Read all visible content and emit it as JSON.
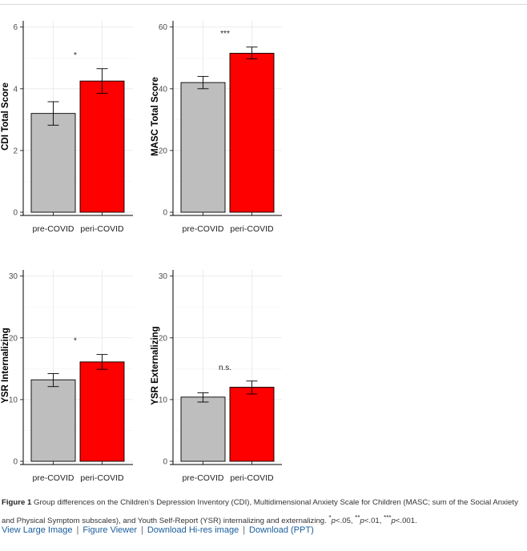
{
  "chart_data": [
    {
      "type": "bar",
      "categories": [
        "pre-COVID",
        "peri-COVID"
      ],
      "values": [
        3.2,
        4.25
      ],
      "error": [
        [
          2.82,
          3.58
        ],
        [
          3.85,
          4.65
        ]
      ],
      "colors": [
        "#bebebe",
        "#ff0000"
      ],
      "ylabel": "CDI Total Score",
      "ylim": [
        0,
        6.2
      ],
      "yticks": [
        0,
        2,
        4,
        6
      ],
      "annotation": "*",
      "grid": true
    },
    {
      "type": "bar",
      "categories": [
        "pre-COVID",
        "peri-COVID"
      ],
      "values": [
        42,
        51.5
      ],
      "error": [
        [
          40,
          44
        ],
        [
          49.7,
          53.5
        ]
      ],
      "colors": [
        "#bebebe",
        "#ff0000"
      ],
      "ylabel": "MASC Total Score",
      "ylim": [
        0,
        62
      ],
      "yticks": [
        0,
        20,
        40,
        60
      ],
      "annotation": "***",
      "grid": true
    },
    {
      "type": "bar",
      "categories": [
        "pre-COVID",
        "peri-COVID"
      ],
      "values": [
        13.2,
        16.1
      ],
      "error": [
        [
          12.1,
          14.2
        ],
        [
          14.9,
          17.3
        ]
      ],
      "colors": [
        "#bebebe",
        "#ff0000"
      ],
      "ylabel": "YSR Internalizing",
      "ylim": [
        0,
        31
      ],
      "yticks": [
        0,
        10,
        20,
        30
      ],
      "annotation": "*",
      "grid": true
    },
    {
      "type": "bar",
      "categories": [
        "pre-COVID",
        "peri-COVID"
      ],
      "values": [
        10.4,
        12
      ],
      "error": [
        [
          9.6,
          11.1
        ],
        [
          10.9,
          13
        ]
      ],
      "colors": [
        "#bebebe",
        "#ff0000"
      ],
      "ylabel": "YSR Externalizing",
      "ylim": [
        0,
        31
      ],
      "yticks": [
        0,
        10,
        20,
        30
      ],
      "annotation": "n.s.",
      "grid": true
    }
  ],
  "caption": {
    "label": "Figure 1",
    "text": "Group differences on the Children’s Depression Inventory (CDI), Multidimensional Anxiety Scale for Children (MASC; sum of the Social Anxiety and Physical Symptom subscales), and Youth Self-Report (YSR) internalizing and externalizing.",
    "sig_1_mark": "*",
    "sig_1_p": "p",
    "sig_1_val": "<.05, ",
    "sig_2_mark": "**",
    "sig_2_p": "p",
    "sig_2_val": "<.01, ",
    "sig_3_mark": "***",
    "sig_3_p": "p",
    "sig_3_val": "<.001."
  },
  "links": {
    "view_large": "View Large Image",
    "figure_viewer": "Figure Viewer",
    "download_hires": "Download Hi-res image",
    "download_ppt": "Download (PPT)",
    "separator": "|"
  }
}
